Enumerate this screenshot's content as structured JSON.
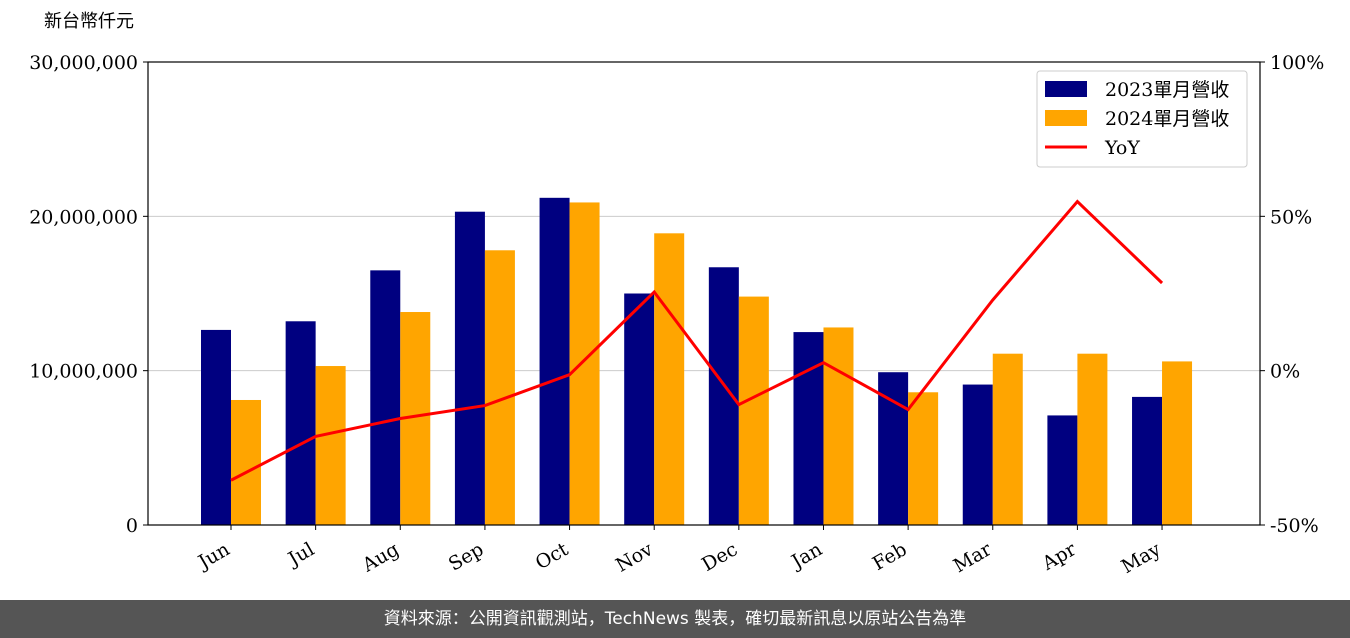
{
  "chart_data": {
    "type": "bar-line",
    "y_label": "新台幣仟元",
    "categories": [
      "Jun",
      "Jul",
      "Aug",
      "Sep",
      "Oct",
      "Nov",
      "Dec",
      "Jan",
      "Feb",
      "Mar",
      "Apr",
      "May"
    ],
    "series": [
      {
        "name": "2023單月營收",
        "color": "#000080",
        "type": "bar",
        "values": [
          12640000,
          13200000,
          16500000,
          20300000,
          21200000,
          15000000,
          16700000,
          12500000,
          9900000,
          9100000,
          7100000,
          8300000
        ]
      },
      {
        "name": "2024單月營收",
        "color": "#ffa500",
        "type": "bar",
        "values": [
          8100000,
          10300000,
          13800000,
          17800000,
          20900000,
          18900000,
          14800000,
          12800000,
          8600000,
          11100000,
          11100000,
          10600000
        ]
      },
      {
        "name": "YoY",
        "color": "#ff0000",
        "type": "line",
        "axis": "y2",
        "values": [
          -35.5,
          -21.3,
          -15.5,
          -11.3,
          -1.3,
          25.5,
          -11,
          2.6,
          -12.6,
          22.9,
          54.8,
          28.4
        ]
      }
    ],
    "ylim": [
      0,
      30000000
    ],
    "yticks": [
      0,
      {
        "value": 10000000,
        "label": "10,000,000"
      },
      {
        "value": 20000000,
        "label": "20,000,000"
      },
      {
        "value": 30000000,
        "label": "30,000,000"
      }
    ],
    "y2lim": [
      -50,
      100
    ],
    "y2ticks": [
      {
        "value": -50,
        "label": "-50%"
      },
      {
        "value": 0,
        "label": "0%"
      },
      {
        "value": 50,
        "label": "50%"
      },
      {
        "value": 100,
        "label": "100%"
      }
    ],
    "grid": true,
    "legend": "upper right",
    "footer": "資料來源：公開資訊觀測站，TechNews 製表，確切最新訊息以原站公告為準"
  }
}
